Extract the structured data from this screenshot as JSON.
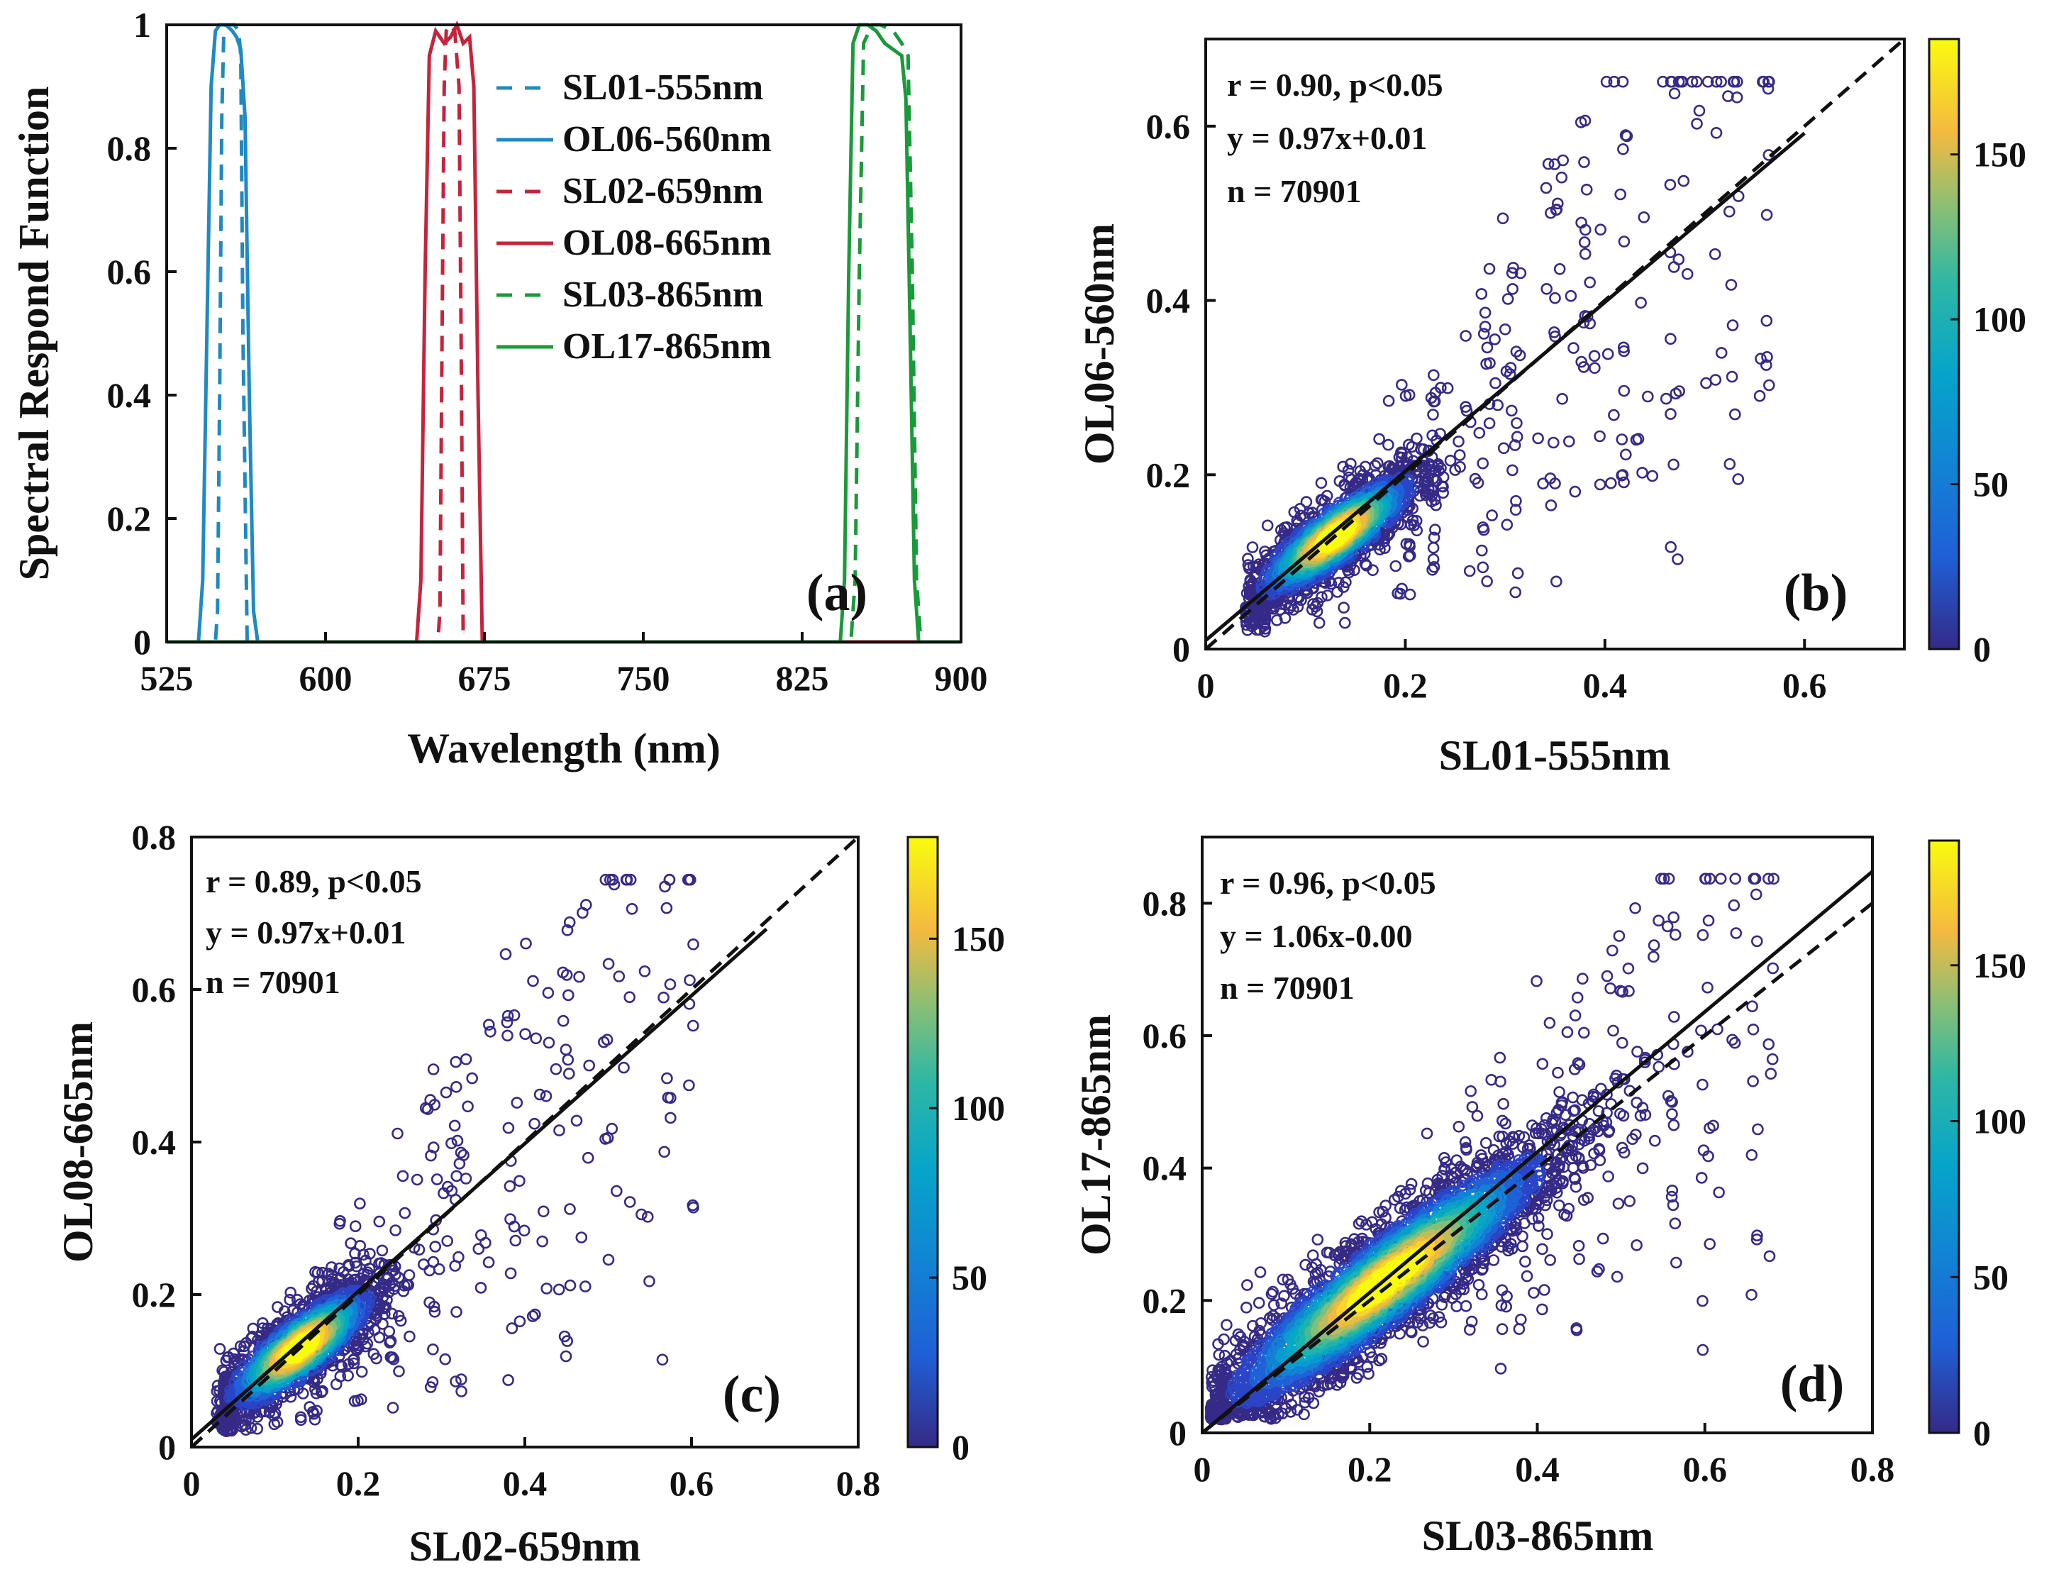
{
  "figure": {
    "panels": [
      "a",
      "b",
      "c",
      "d"
    ]
  },
  "chart_data": [
    {
      "id": "a",
      "type": "line",
      "panel_label": "(a)",
      "xlabel": "Wavelength (nm)",
      "ylabel": "Spectral Respond Function",
      "xlim": [
        525,
        900
      ],
      "ylim": [
        0,
        1
      ],
      "xticks": [
        "525",
        "600",
        "675",
        "750",
        "825",
        "900"
      ],
      "yticks": [
        "0",
        "0.2",
        "0.4",
        "0.6",
        "0.8",
        "1"
      ],
      "legend_position": "top-center",
      "series": [
        {
          "name": "SL01-555nm",
          "color": "#1f8ac2",
          "dashed": true,
          "x": [
            525,
            548,
            549,
            550,
            551,
            552,
            553,
            555,
            557,
            559,
            560,
            561,
            563,
            900
          ],
          "y": [
            0,
            0,
            0.05,
            0.4,
            0.85,
            0.99,
            1,
            1,
            1,
            0.99,
            0.95,
            0.5,
            0,
            0
          ]
        },
        {
          "name": "OL06-560nm",
          "color": "#1f8ac2",
          "dashed": false,
          "x": [
            525,
            540,
            542,
            544,
            546,
            548,
            550,
            553,
            556,
            558,
            560,
            562,
            564,
            566,
            568,
            900
          ],
          "y": [
            0,
            0,
            0.1,
            0.5,
            0.9,
            0.99,
            1,
            1,
            0.99,
            0.98,
            0.96,
            0.85,
            0.4,
            0.05,
            0,
            0
          ]
        },
        {
          "name": "SL02-659nm",
          "color": "#c4243c",
          "dashed": true,
          "x": [
            525,
            653,
            654,
            655,
            656,
            657,
            659,
            661,
            663,
            664,
            665,
            900
          ],
          "y": [
            0,
            0,
            0.05,
            0.5,
            0.9,
            0.99,
            1,
            0.99,
            0.9,
            0.5,
            0,
            0
          ]
        },
        {
          "name": "OL08-665nm",
          "color": "#c4243c",
          "dashed": false,
          "x": [
            525,
            643,
            645,
            647,
            649,
            652,
            656,
            659,
            662,
            665,
            668,
            670,
            672,
            674,
            900
          ],
          "y": [
            0,
            0,
            0.1,
            0.6,
            0.95,
            0.99,
            0.97,
            0.98,
            1,
            0.97,
            0.98,
            0.9,
            0.4,
            0,
            0
          ]
        },
        {
          "name": "SL03-865nm",
          "color": "#1a9a3a",
          "dashed": true,
          "x": [
            525,
            848,
            850,
            852,
            854,
            858,
            862,
            868,
            872,
            875,
            877,
            879,
            881,
            900
          ],
          "y": [
            0,
            0,
            0.1,
            0.6,
            0.97,
            1,
            1,
            0.99,
            0.97,
            0.95,
            0.6,
            0.1,
            0,
            0
          ]
        },
        {
          "name": "OL17-865nm",
          "color": "#1a9a3a",
          "dashed": false,
          "x": [
            525,
            843,
            845,
            847,
            849,
            852,
            856,
            860,
            864,
            868,
            872,
            874,
            876,
            878,
            880,
            900
          ],
          "y": [
            0,
            0,
            0.1,
            0.6,
            0.97,
            1,
            1,
            0.99,
            0.97,
            0.96,
            0.95,
            0.88,
            0.5,
            0.1,
            0,
            0
          ]
        }
      ]
    },
    {
      "id": "b",
      "type": "scatter",
      "panel_label": "(b)",
      "xlabel": "SL01-555nm",
      "ylabel": "OL06-560nm",
      "xlim": [
        0,
        0.7
      ],
      "ylim": [
        0,
        0.7
      ],
      "xticks": [
        "0",
        "0.2",
        "0.4",
        "0.6"
      ],
      "yticks": [
        "0",
        "0.2",
        "0.4",
        "0.6"
      ],
      "stats": [
        "r =  0.90, p<0.05",
        "y = 0.97x+0.01",
        "n =  70901"
      ],
      "fit": {
        "slope": 0.97,
        "intercept": 0.01,
        "x_end": 0.6
      },
      "identity_line": true,
      "colorbar": {
        "min": 0,
        "max": 185,
        "ticks": [
          "0",
          "50",
          "100",
          "150"
        ]
      },
      "cluster": {
        "center": [
          0.13,
          0.13
        ],
        "spread": [
          0.045,
          0.04
        ],
        "corr": 0.85
      },
      "x_range": [
        0.04,
        0.59
      ],
      "outlier_columns": [
        0.11,
        0.14,
        0.2,
        0.23,
        0.28,
        0.31,
        0.35,
        0.38,
        0.42,
        0.47,
        0.53,
        0.56
      ]
    },
    {
      "id": "c",
      "type": "scatter",
      "panel_label": "(c)",
      "xlabel": "SL02-659nm",
      "ylabel": "OL08-665nm",
      "xlim": [
        0,
        0.8
      ],
      "ylim": [
        0,
        0.8
      ],
      "xticks": [
        "0",
        "0.2",
        "0.4",
        "0.6",
        "0.8"
      ],
      "yticks": [
        "0",
        "0.2",
        "0.4",
        "0.6",
        "0.8"
      ],
      "stats": [
        "r =  0.89, p<0.05",
        "y = 0.97x+0.01",
        "n =  70901"
      ],
      "fit": {
        "slope": 0.97,
        "intercept": 0.01,
        "x_end": 0.69
      },
      "identity_line": true,
      "colorbar": {
        "min": 0,
        "max": 180,
        "ticks": [
          "0",
          "50",
          "100",
          "150"
        ]
      },
      "cluster": {
        "center": [
          0.13,
          0.13
        ],
        "spread": [
          0.05,
          0.045
        ],
        "corr": 0.82
      },
      "x_range": [
        0.03,
        0.61
      ],
      "outlier_columns": [
        0.1,
        0.15,
        0.2,
        0.24,
        0.29,
        0.32,
        0.38,
        0.45,
        0.5,
        0.57,
        0.6
      ]
    },
    {
      "id": "d",
      "type": "scatter",
      "panel_label": "(d)",
      "xlabel": "SL03-865nm",
      "ylabel": "OL17-865nm",
      "xlim": [
        0,
        0.8
      ],
      "ylim": [
        0,
        0.9
      ],
      "xticks": [
        "0",
        "0.2",
        "0.4",
        "0.6",
        "0.8"
      ],
      "yticks": [
        "0",
        "0.2",
        "0.4",
        "0.6",
        "0.8"
      ],
      "stats": [
        "r =  0.96, p<0.05",
        "y = 1.06x-0.00",
        "n =  70901"
      ],
      "fit": {
        "slope": 1.06,
        "intercept": 0.0,
        "x_end": 0.8
      },
      "identity_line": true,
      "colorbar": {
        "min": 0,
        "max": 190,
        "ticks": [
          "0",
          "50",
          "100",
          "150"
        ]
      },
      "cluster": {
        "center": [
          0.22,
          0.23
        ],
        "spread": [
          0.11,
          0.11
        ],
        "corr": 0.92
      },
      "x_range": [
        0.01,
        0.72
      ],
      "outlier_columns": [
        0.3,
        0.36,
        0.45,
        0.5,
        0.56,
        0.6,
        0.66,
        0.68
      ]
    }
  ]
}
